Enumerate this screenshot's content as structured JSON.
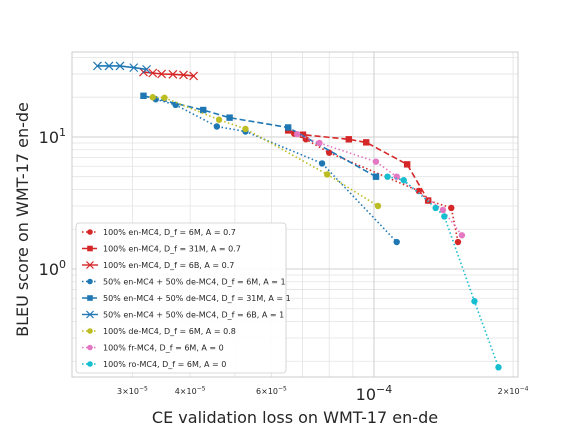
{
  "chart_data": {
    "type": "scatter",
    "title": "",
    "xlabel": "CE validation loss on WMT-17 en-de",
    "ylabel": "BLEU score on WMT-17 en-de",
    "xscale": "log",
    "yscale": "log",
    "xlim": [
      2.22e-05,
      0.000205
    ],
    "ylim": [
      0.152,
      44
    ],
    "grid": true,
    "legend_position": "lower-left",
    "x_major_ticks": [
      {
        "value": 0.0001,
        "label": "10^-4"
      }
    ],
    "x_minor_ticks": [
      {
        "value": 3e-05,
        "label": "3×10^-5"
      },
      {
        "value": 4e-05,
        "label": "4×10^-5"
      },
      {
        "value": 6e-05,
        "label": "6×10^-5"
      },
      {
        "value": 0.0002,
        "label": "2×10^-4"
      }
    ],
    "y_major_ticks": [
      {
        "value": 1,
        "label": "10^0"
      },
      {
        "value": 10,
        "label": "10^1"
      }
    ],
    "series": [
      {
        "name": "100% en-MC4, D_f = 6M, A = 0.7",
        "color": "#d62728",
        "marker": "circle",
        "linestyle": "dotted",
        "x": [
          6.72e-05,
          7.12e-05,
          8e-05,
          0.000125,
          0.000131,
          0.000147,
          0.000152
        ],
        "y": [
          10.6,
          9.6,
          7.6,
          3.9,
          3.3,
          2.9,
          1.6
        ]
      },
      {
        "name": "100% en-MC4, D_f = 31M, A = 0.7",
        "color": "#d62728",
        "marker": "square",
        "linestyle": "dashed",
        "x": [
          6.52e-05,
          7.02e-05,
          8.82e-05,
          9.62e-05,
          0.000118,
          0.000131
        ],
        "y": [
          11.2,
          10.4,
          9.6,
          9.1,
          6.2,
          3.3
        ]
      },
      {
        "name": "100% en-MC4, D_f = 6B, A = 0.7",
        "color": "#d62728",
        "marker": "x",
        "linestyle": "solid",
        "x": [
          3.17e-05,
          3.32e-05,
          3.47e-05,
          3.67e-05,
          3.87e-05,
          4.07e-05
        ],
        "y": [
          31.0,
          30.5,
          30.0,
          29.8,
          29.5,
          29.0
        ]
      },
      {
        "name": "50% en-MC4 + 50% de-MC4, D_f = 6M, A = 1",
        "color": "#1f77b4",
        "marker": "circle",
        "linestyle": "dotted",
        "x": [
          3.37e-05,
          3.72e-05,
          4.57e-05,
          5.27e-05,
          7.72e-05,
          0.000112
        ],
        "y": [
          19.3,
          17.5,
          12.0,
          11.0,
          6.3,
          1.6
        ]
      },
      {
        "name": "50% en-MC4 + 50% de-MC4, D_f = 31M, A = 1",
        "color": "#1f77b4",
        "marker": "square",
        "linestyle": "dashed",
        "x": [
          3.17e-05,
          4.27e-05,
          4.87e-05,
          6.52e-05,
          0.000101
        ],
        "y": [
          20.5,
          16.0,
          14.0,
          11.8,
          5.0
        ]
      },
      {
        "name": "50% en-MC4 + 50% de-MC4, D_f = 6B, A = 1",
        "color": "#1f77b4",
        "marker": "x",
        "linestyle": "solid",
        "x": [
          2.52e-05,
          2.67e-05,
          2.82e-05,
          3.02e-05,
          3.22e-05
        ],
        "y": [
          34.5,
          34.5,
          34.5,
          33.5,
          32.5
        ]
      },
      {
        "name": "100% de-MC4, D_f = 6M, A = 0.8",
        "color": "#bcbd22",
        "marker": "circle",
        "linestyle": "dotted",
        "x": [
          3.32e-05,
          3.52e-05,
          4.62e-05,
          5.27e-05,
          7.92e-05,
          0.000102
        ],
        "y": [
          20.0,
          19.8,
          13.5,
          11.5,
          5.2,
          3.0
        ]
      },
      {
        "name": "100% fr-MC4, D_f = 6M, A = 0",
        "color": "#e377c2",
        "marker": "circle",
        "linestyle": "dotted",
        "x": [
          6.82e-05,
          7.62e-05,
          0.000101,
          0.000112,
          0.000141,
          0.000155
        ],
        "y": [
          10.5,
          9.0,
          6.5,
          5.0,
          2.8,
          1.8
        ]
      },
      {
        "name": "100% ro-MC4, D_f = 6M, A = 0",
        "color": "#17becf",
        "marker": "circle",
        "linestyle": "dotted",
        "x": [
          0.000107,
          0.000116,
          0.000136,
          0.000142,
          0.000165,
          0.000186
        ],
        "y": [
          5.0,
          4.7,
          2.9,
          2.5,
          0.57,
          0.18
        ]
      }
    ]
  }
}
